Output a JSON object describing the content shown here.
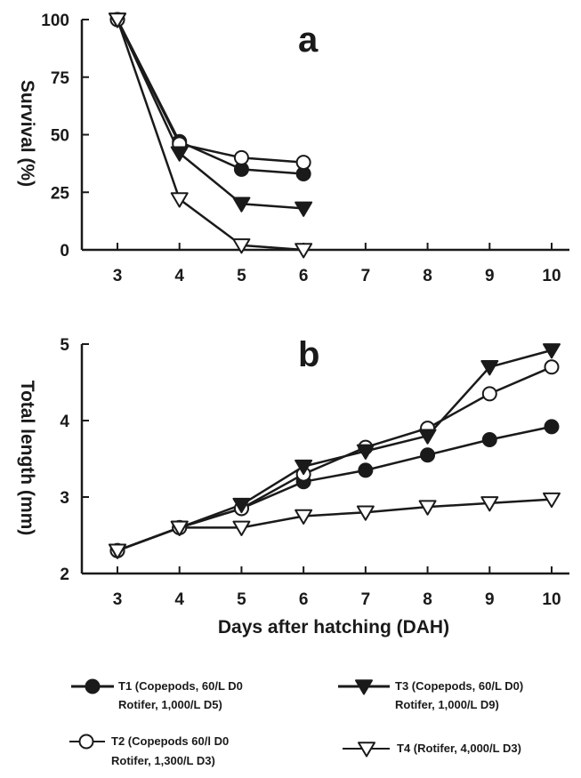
{
  "chart_data": [
    {
      "type": "line",
      "panel_label": "a",
      "ylabel": "Survival (%)",
      "xlabel": "",
      "xlim": [
        3,
        10
      ],
      "ylim": [
        0,
        100
      ],
      "xticks": [
        "3",
        "4",
        "5",
        "6",
        "7",
        "8",
        "9",
        "10"
      ],
      "yticks": [
        "0",
        "25",
        "50",
        "75",
        "100"
      ],
      "grid": false,
      "series": [
        {
          "name": "T1",
          "marker": "filled-circle",
          "x": [
            3,
            4,
            5,
            6
          ],
          "values": [
            100,
            47,
            35,
            33
          ]
        },
        {
          "name": "T2",
          "marker": "open-circle",
          "x": [
            3,
            4,
            5,
            6
          ],
          "values": [
            100,
            46,
            40,
            38
          ]
        },
        {
          "name": "T3",
          "marker": "filled-triangle-down",
          "x": [
            3,
            4,
            5,
            6
          ],
          "values": [
            100,
            42,
            20,
            18
          ]
        },
        {
          "name": "T4",
          "marker": "open-triangle-down",
          "x": [
            3,
            4,
            5,
            6
          ],
          "values": [
            100,
            22,
            2,
            0
          ]
        }
      ]
    },
    {
      "type": "line",
      "panel_label": "b",
      "ylabel": "Total length (mm)",
      "xlabel": "Days after hatching (DAH)",
      "xlim": [
        3,
        10
      ],
      "ylim": [
        2,
        5
      ],
      "xticks": [
        "3",
        "4",
        "5",
        "6",
        "7",
        "8",
        "9",
        "10"
      ],
      "yticks": [
        "2",
        "3",
        "4",
        "5"
      ],
      "grid": false,
      "series": [
        {
          "name": "T1",
          "marker": "filled-circle",
          "x": [
            3,
            4,
            5,
            6,
            7,
            8,
            9,
            10
          ],
          "values": [
            2.3,
            2.6,
            2.85,
            3.2,
            3.35,
            3.55,
            3.75,
            3.92
          ]
        },
        {
          "name": "T2",
          "marker": "open-circle",
          "x": [
            3,
            4,
            5,
            6,
            7,
            8,
            9,
            10
          ],
          "values": [
            2.3,
            2.6,
            2.85,
            3.3,
            3.65,
            3.9,
            4.35,
            4.7
          ]
        },
        {
          "name": "T3",
          "marker": "filled-triangle-down",
          "x": [
            3,
            4,
            5,
            6,
            7,
            8,
            9,
            10
          ],
          "values": [
            2.3,
            2.6,
            2.9,
            3.4,
            3.6,
            3.8,
            4.7,
            4.92
          ]
        },
        {
          "name": "T4",
          "marker": "open-triangle-down",
          "x": [
            3,
            4,
            5,
            6,
            7,
            8,
            9,
            10
          ],
          "values": [
            2.3,
            2.6,
            2.6,
            2.75,
            2.8,
            2.87,
            2.92,
            2.97
          ]
        }
      ]
    }
  ],
  "legend": {
    "placement": "bottom",
    "entries": [
      {
        "series": "T1",
        "marker": "filled-circle",
        "line1": "T1 (Copepods, 60/L D0",
        "line2": "Rotifer, 1,000/L D5)"
      },
      {
        "series": "T3",
        "marker": "filled-triangle-down",
        "line1": "T3 (Copepods, 60/L D0)",
        "line2": "Rotifer, 1,000/L D9)"
      },
      {
        "series": "T2",
        "marker": "open-circle",
        "line1": "T2 (Copepods 60/l D0",
        "line2": "Rotifer, 1,300/L D3)"
      },
      {
        "series": "T4",
        "marker": "open-triangle-down",
        "line1": "T4 (Rotifer, 4,000/L D3)",
        "line2": ""
      }
    ]
  },
  "colors": {
    "ink": "#1a1a1a",
    "background": "#ffffff"
  }
}
